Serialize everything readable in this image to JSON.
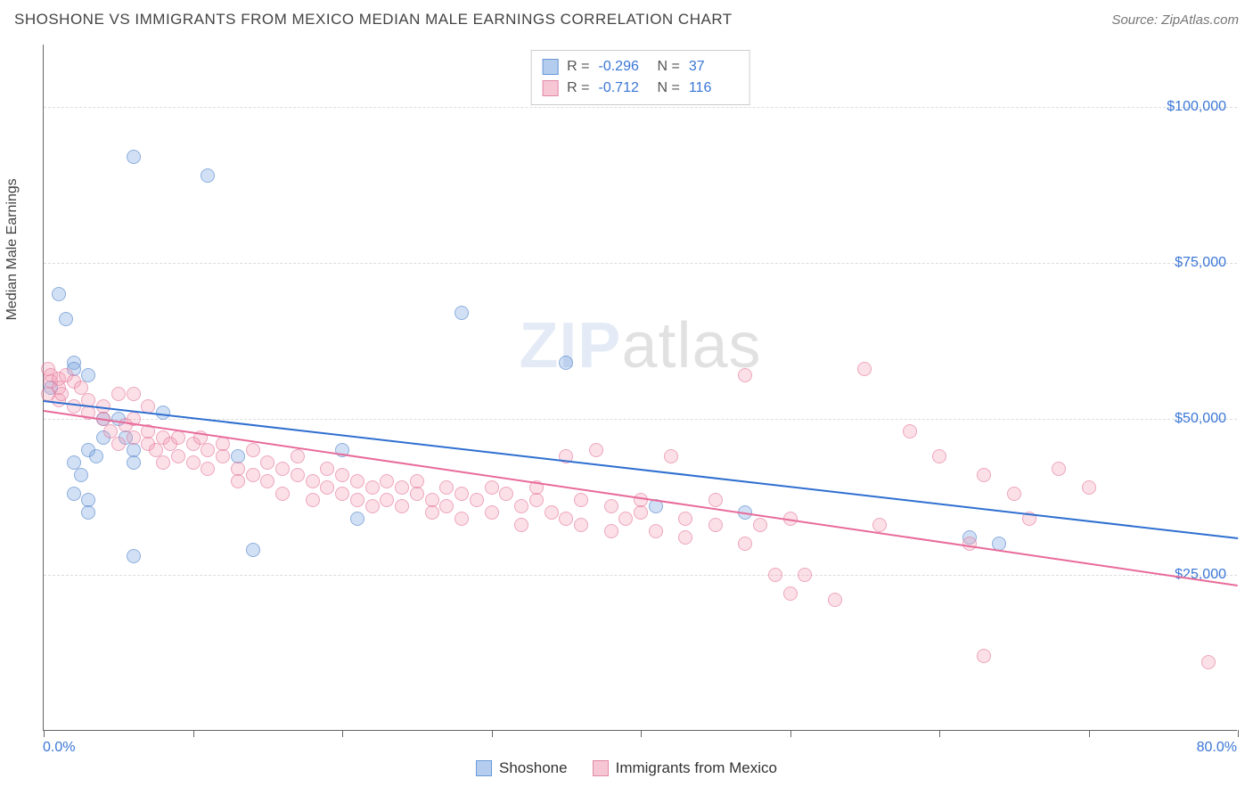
{
  "title": "SHOSHONE VS IMMIGRANTS FROM MEXICO MEDIAN MALE EARNINGS CORRELATION CHART",
  "source_label": "Source: ZipAtlas.com",
  "y_axis_title": "Median Male Earnings",
  "watermark_a": "ZIP",
  "watermark_b": "atlas",
  "chart": {
    "type": "scatter",
    "xlim": [
      0,
      80
    ],
    "ylim": [
      0,
      110000
    ],
    "x_ticks_at": [
      0,
      10,
      20,
      30,
      40,
      50,
      60,
      70,
      80
    ],
    "x_tick_labels": {
      "first": "0.0%",
      "last": "80.0%"
    },
    "y_gridlines": [
      25000,
      50000,
      75000,
      100000
    ],
    "y_tick_labels": [
      "$25,000",
      "$50,000",
      "$75,000",
      "$100,000"
    ],
    "grid_color": "#dddddd",
    "background": "#ffffff",
    "series": [
      {
        "name": "Shoshone",
        "color_fill": "rgba(120,165,225,0.45)",
        "color_stroke": "#5a8ad0",
        "css": "blue",
        "R": "-0.296",
        "N": "37",
        "trend": {
          "x1": 0,
          "y1": 53000,
          "x2": 80,
          "y2": 31000,
          "color": "#2f6fd0"
        },
        "points": [
          [
            1,
            70000
          ],
          [
            1.5,
            66000
          ],
          [
            2,
            59000
          ],
          [
            2,
            58000
          ],
          [
            0.5,
            55000
          ],
          [
            3,
            57000
          ],
          [
            6,
            92000
          ],
          [
            11,
            89000
          ],
          [
            3,
            45000
          ],
          [
            4,
            50000
          ],
          [
            4,
            47000
          ],
          [
            2,
            43000
          ],
          [
            2.5,
            41000
          ],
          [
            5,
            50000
          ],
          [
            5.5,
            47000
          ],
          [
            6,
            45000
          ],
          [
            6,
            43000
          ],
          [
            2,
            38000
          ],
          [
            3,
            37000
          ],
          [
            3,
            35000
          ],
          [
            3.5,
            44000
          ],
          [
            13,
            44000
          ],
          [
            8,
            51000
          ],
          [
            6,
            28000
          ],
          [
            14,
            29000
          ],
          [
            21,
            34000
          ],
          [
            20,
            45000
          ],
          [
            28,
            67000
          ],
          [
            35,
            59000
          ],
          [
            41,
            36000
          ],
          [
            62,
            31000
          ],
          [
            64,
            30000
          ],
          [
            47,
            35000
          ]
        ]
      },
      {
        "name": "Immigrants from Mexico",
        "color_fill": "rgba(240,150,175,0.40)",
        "color_stroke": "#e07095",
        "css": "pink",
        "R": "-0.712",
        "N": "116",
        "trend": {
          "x1": 0,
          "y1": 51500,
          "x2": 80,
          "y2": 23500,
          "color": "#e86b9a"
        },
        "points": [
          [
            0.3,
            58000
          ],
          [
            0.5,
            57000
          ],
          [
            0.5,
            56000
          ],
          [
            1,
            56500
          ],
          [
            1,
            55000
          ],
          [
            1.5,
            57000
          ],
          [
            0.3,
            54000
          ],
          [
            1,
            53000
          ],
          [
            1.2,
            54000
          ],
          [
            2,
            56000
          ],
          [
            2,
            52000
          ],
          [
            2.5,
            55000
          ],
          [
            3,
            51000
          ],
          [
            3,
            53000
          ],
          [
            4,
            50000
          ],
          [
            4,
            52000
          ],
          [
            4.5,
            48000
          ],
          [
            5,
            54000
          ],
          [
            5,
            46000
          ],
          [
            5.5,
            49000
          ],
          [
            6,
            50000
          ],
          [
            6,
            47000
          ],
          [
            6,
            54000
          ],
          [
            7,
            46000
          ],
          [
            7,
            48000
          ],
          [
            7.5,
            45000
          ],
          [
            8,
            47000
          ],
          [
            8,
            43000
          ],
          [
            8.5,
            46000
          ],
          [
            9,
            47000
          ],
          [
            7,
            52000
          ],
          [
            9,
            44000
          ],
          [
            10,
            46000
          ],
          [
            10,
            43000
          ],
          [
            10.5,
            47000
          ],
          [
            11,
            45000
          ],
          [
            11,
            42000
          ],
          [
            12,
            44000
          ],
          [
            12,
            46000
          ],
          [
            13,
            42000
          ],
          [
            13,
            40000
          ],
          [
            14,
            45000
          ],
          [
            14,
            41000
          ],
          [
            15,
            43000
          ],
          [
            15,
            40000
          ],
          [
            16,
            42000
          ],
          [
            16,
            38000
          ],
          [
            17,
            41000
          ],
          [
            17,
            44000
          ],
          [
            18,
            40000
          ],
          [
            18,
            37000
          ],
          [
            19,
            39000
          ],
          [
            19,
            42000
          ],
          [
            20,
            38000
          ],
          [
            20,
            41000
          ],
          [
            21,
            40000
          ],
          [
            21,
            37000
          ],
          [
            22,
            39000
          ],
          [
            22,
            36000
          ],
          [
            23,
            40000
          ],
          [
            23,
            37000
          ],
          [
            24,
            39000
          ],
          [
            24,
            36000
          ],
          [
            25,
            38000
          ],
          [
            25,
            40000
          ],
          [
            26,
            37000
          ],
          [
            26,
            35000
          ],
          [
            27,
            39000
          ],
          [
            27,
            36000
          ],
          [
            28,
            38000
          ],
          [
            28,
            34000
          ],
          [
            29,
            37000
          ],
          [
            30,
            39000
          ],
          [
            30,
            35000
          ],
          [
            31,
            38000
          ],
          [
            32,
            36000
          ],
          [
            32,
            33000
          ],
          [
            33,
            37000
          ],
          [
            33,
            39000
          ],
          [
            34,
            35000
          ],
          [
            35,
            44000
          ],
          [
            35,
            34000
          ],
          [
            36,
            33000
          ],
          [
            36,
            37000
          ],
          [
            37,
            45000
          ],
          [
            38,
            32000
          ],
          [
            38,
            36000
          ],
          [
            39,
            34000
          ],
          [
            40,
            35000
          ],
          [
            40,
            37000
          ],
          [
            41,
            32000
          ],
          [
            42,
            44000
          ],
          [
            43,
            34000
          ],
          [
            43,
            31000
          ],
          [
            45,
            33000
          ],
          [
            45,
            37000
          ],
          [
            47,
            30000
          ],
          [
            47,
            57000
          ],
          [
            48,
            33000
          ],
          [
            49,
            25000
          ],
          [
            50,
            34000
          ],
          [
            50,
            22000
          ],
          [
            51,
            25000
          ],
          [
            53,
            21000
          ],
          [
            55,
            58000
          ],
          [
            56,
            33000
          ],
          [
            58,
            48000
          ],
          [
            60,
            44000
          ],
          [
            62,
            30000
          ],
          [
            63,
            41000
          ],
          [
            63,
            12000
          ],
          [
            65,
            38000
          ],
          [
            66,
            34000
          ],
          [
            68,
            42000
          ],
          [
            70,
            39000
          ],
          [
            78,
            11000
          ]
        ]
      }
    ]
  },
  "legend": {
    "items": [
      {
        "label": "Shoshone",
        "css": "blue"
      },
      {
        "label": "Immigrants from Mexico",
        "css": "pink"
      }
    ]
  }
}
